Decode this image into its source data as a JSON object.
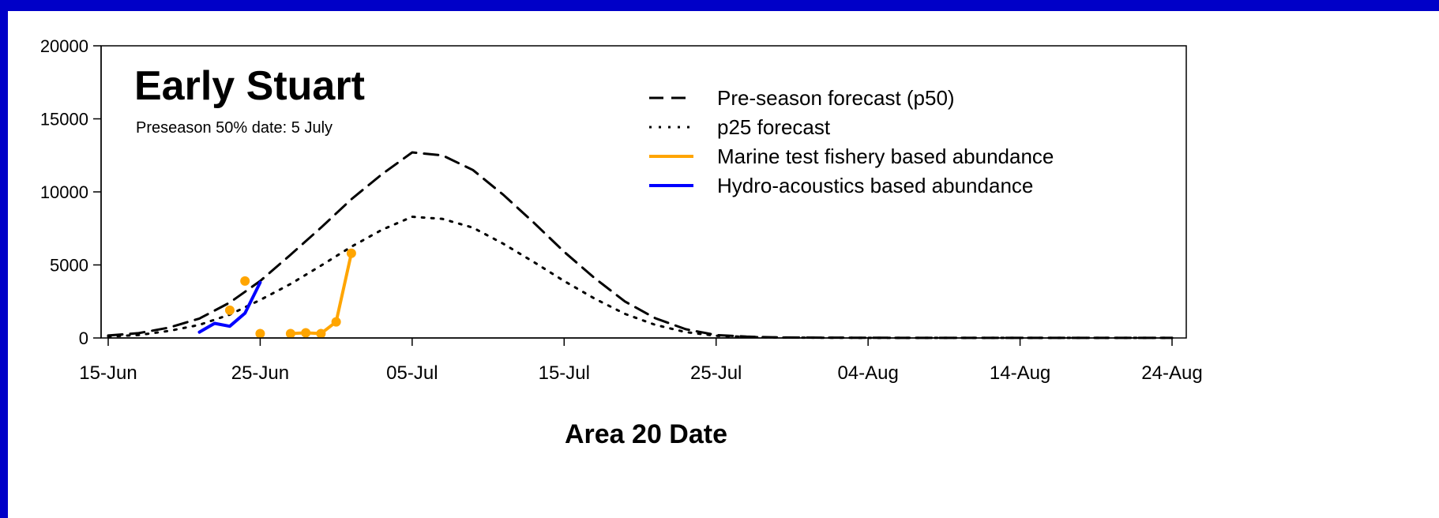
{
  "chart_data": {
    "type": "line",
    "title": "Early Stuart",
    "subtitle": "Preseason 50% date:  5 July",
    "xlabel": "Area 20 Date",
    "ylabel": "",
    "ylim": [
      0,
      20000
    ],
    "xlim": [
      "2023-06-15",
      "2023-08-24"
    ],
    "yticks": [
      0,
      5000,
      10000,
      15000,
      20000
    ],
    "xticks": [
      {
        "date": "2023-06-15",
        "label": "15-Jun"
      },
      {
        "date": "2023-06-25",
        "label": "25-Jun"
      },
      {
        "date": "2023-07-05",
        "label": "05-Jul"
      },
      {
        "date": "2023-07-15",
        "label": "15-Jul"
      },
      {
        "date": "2023-07-25",
        "label": "25-Jul"
      },
      {
        "date": "2023-08-04",
        "label": "04-Aug"
      },
      {
        "date": "2023-08-14",
        "label": "14-Aug"
      },
      {
        "date": "2023-08-24",
        "label": "24-Aug"
      }
    ],
    "grid": false,
    "legend_position": "top-right",
    "series": [
      {
        "name": "Pre-season forecast (p50)",
        "style": "dashed",
        "color": "#000000",
        "x": [
          "2023-06-15",
          "2023-06-17",
          "2023-06-19",
          "2023-06-21",
          "2023-06-23",
          "2023-06-25",
          "2023-06-27",
          "2023-06-29",
          "2023-07-01",
          "2023-07-03",
          "2023-07-05",
          "2023-07-07",
          "2023-07-09",
          "2023-07-11",
          "2023-07-13",
          "2023-07-15",
          "2023-07-17",
          "2023-07-19",
          "2023-07-21",
          "2023-07-23",
          "2023-07-25",
          "2023-07-27",
          "2023-07-29",
          "2023-08-01",
          "2023-08-05",
          "2023-08-10",
          "2023-08-15",
          "2023-08-20",
          "2023-08-24"
        ],
        "y": [
          170,
          330,
          710,
          1330,
          2420,
          3900,
          5700,
          7550,
          9500,
          11200,
          12700,
          12500,
          11500,
          9800,
          7900,
          5900,
          4100,
          2500,
          1350,
          600,
          200,
          90,
          40,
          20,
          10,
          5,
          5,
          5,
          5
        ]
      },
      {
        "name": "p25 forecast",
        "style": "dotted",
        "color": "#000000",
        "x": [
          "2023-06-15",
          "2023-06-17",
          "2023-06-19",
          "2023-06-21",
          "2023-06-23",
          "2023-06-25",
          "2023-06-27",
          "2023-06-29",
          "2023-07-01",
          "2023-07-03",
          "2023-07-05",
          "2023-07-07",
          "2023-07-09",
          "2023-07-11",
          "2023-07-13",
          "2023-07-15",
          "2023-07-17",
          "2023-07-19",
          "2023-07-21",
          "2023-07-23",
          "2023-07-25",
          "2023-07-27",
          "2023-07-29",
          "2023-08-01",
          "2023-08-05",
          "2023-08-10",
          "2023-08-15",
          "2023-08-20",
          "2023-08-24"
        ],
        "y": [
          100,
          200,
          480,
          900,
          1600,
          2600,
          3700,
          4950,
          6250,
          7400,
          8300,
          8150,
          7550,
          6450,
          5200,
          3900,
          2700,
          1650,
          900,
          400,
          150,
          70,
          30,
          15,
          8,
          5,
          5,
          5,
          5
        ]
      },
      {
        "name": "Marine test fishery based abundance",
        "style": "solid",
        "color": "#FFA500",
        "segments": [
          {
            "x": [
              "2023-06-23"
            ],
            "y": [
              1900
            ]
          },
          {
            "x": [
              "2023-06-24"
            ],
            "y": [
              3900
            ]
          },
          {
            "x": [
              "2023-06-25"
            ],
            "y": [
              300
            ]
          },
          {
            "x": [
              "2023-06-27",
              "2023-06-28",
              "2023-06-29",
              "2023-06-30",
              "2023-07-01"
            ],
            "y": [
              300,
              350,
              300,
              1100,
              5800
            ]
          }
        ]
      },
      {
        "name": "Hydro-acoustics based abundance",
        "style": "solid",
        "color": "#0000FF",
        "segments": [
          {
            "x": [
              "2023-06-21",
              "2023-06-22",
              "2023-06-23",
              "2023-06-24",
              "2023-06-25"
            ],
            "y": [
              400,
              1000,
              800,
              1700,
              3800
            ]
          }
        ]
      }
    ]
  }
}
